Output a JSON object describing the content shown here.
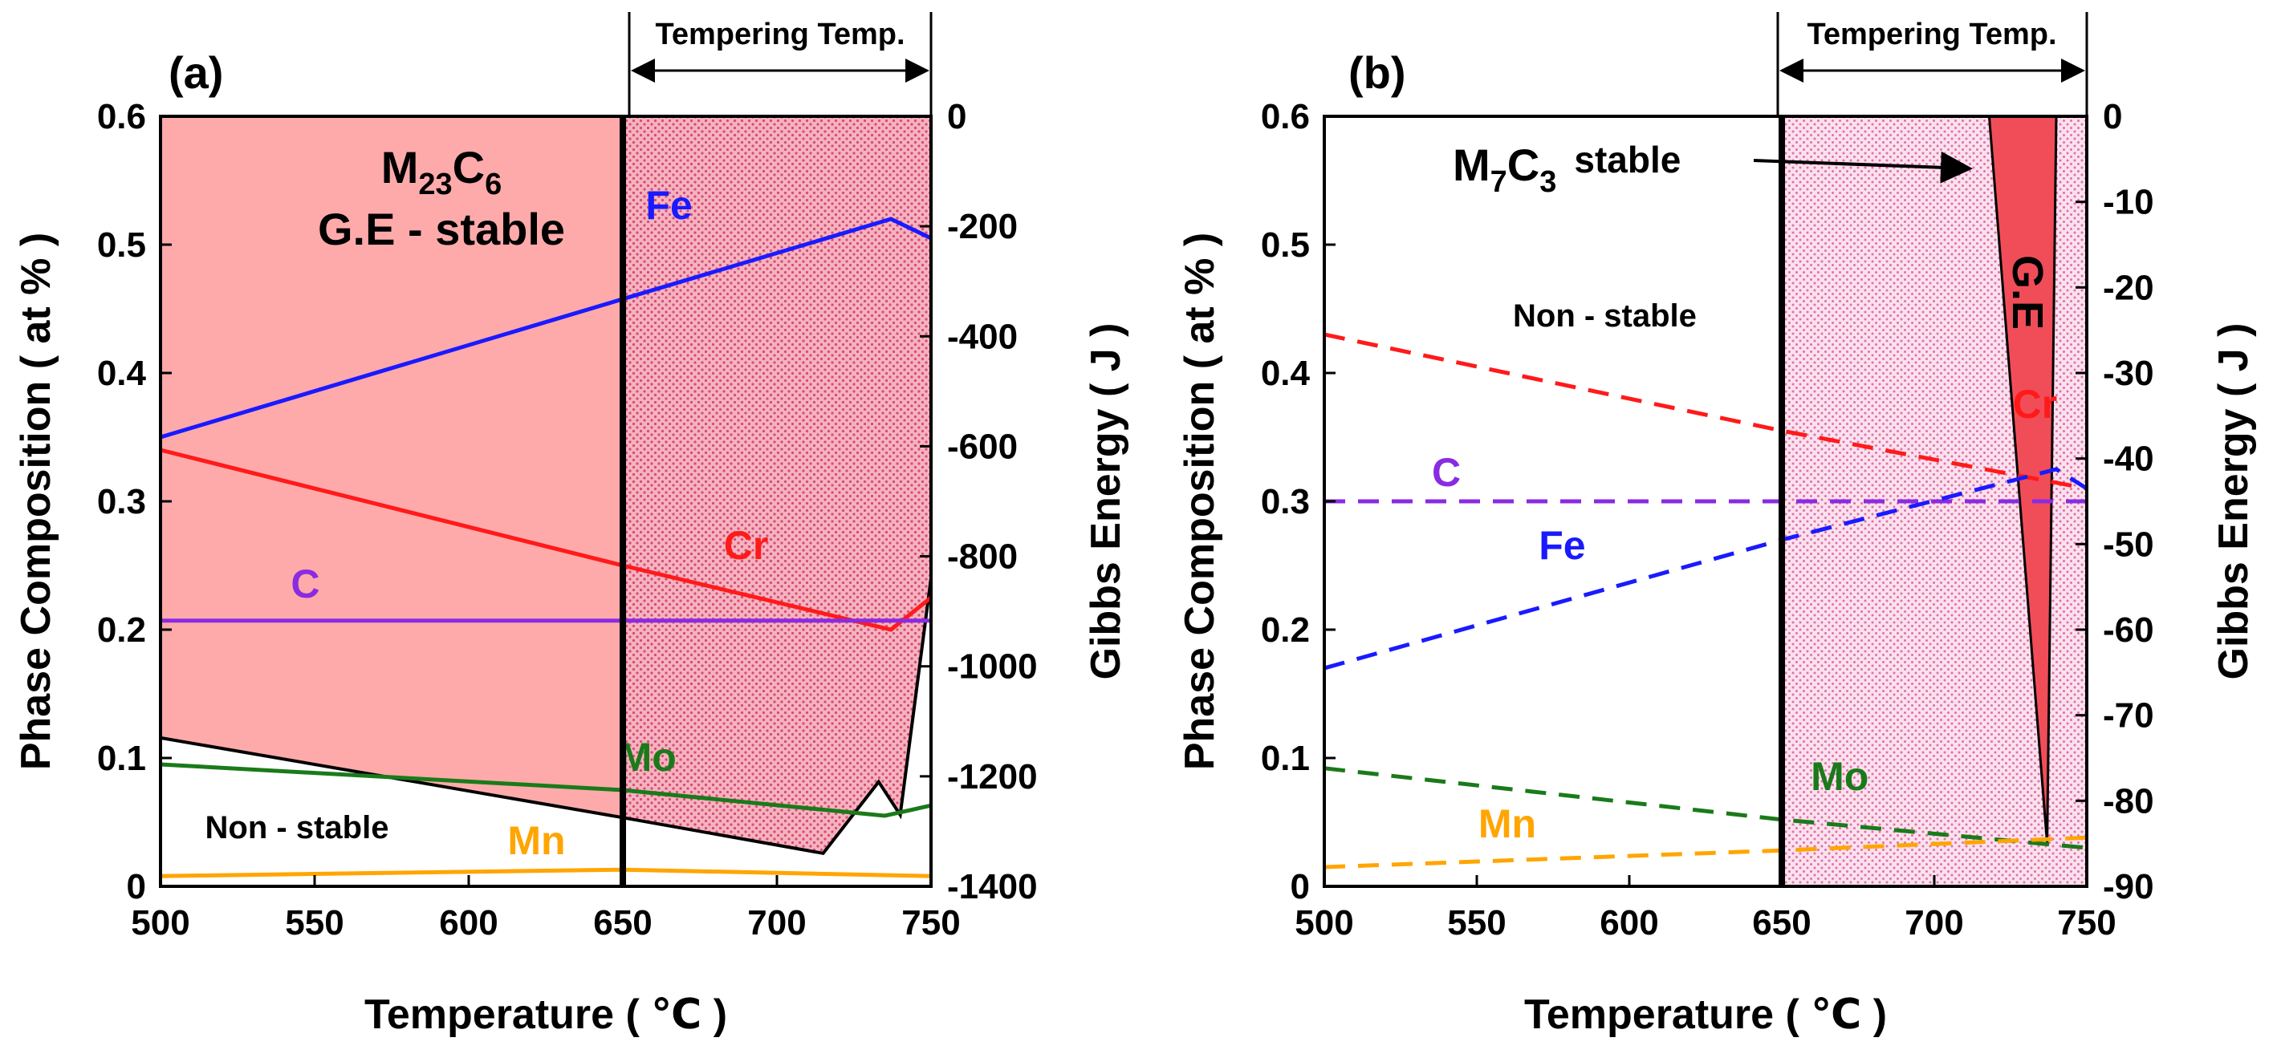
{
  "chart_data": [
    {
      "type": "line",
      "panel": "(a)",
      "xlabel": "Temperature ( ℃ )",
      "ylabel": "Phase Composition ( at % )",
      "y2label": "Gibbs Energy ( J )",
      "xlim": [
        500,
        750
      ],
      "ylim": [
        0,
        0.6
      ],
      "y2lim": [
        -1400,
        0
      ],
      "x_ticks": [
        "500",
        "550",
        "600",
        "650",
        "700",
        "750"
      ],
      "y_ticks": [
        "0",
        "0.1",
        "0.2",
        "0.3",
        "0.4",
        "0.5",
        "0.6"
      ],
      "y2_ticks": [
        "0",
        "-200",
        "-400",
        "-600",
        "-800",
        "-1000",
        "-1200",
        "-1400"
      ],
      "tempering": {
        "label": "Tempering Temp.",
        "range": [
          650,
          750
        ]
      },
      "stable_region": {
        "label_main": "M",
        "label_sub1": "23",
        "label_mid": "C",
        "label_sub2": "6",
        "label_line2": "G.E - stable"
      },
      "nonstable_label": "Non - stable",
      "gibbs_energy": {
        "x": [
          500,
          650,
          715,
          733,
          740,
          750
        ],
        "y": [
          -1130,
          -1275,
          -1340,
          -1210,
          -1270,
          -840
        ]
      },
      "series": [
        {
          "name": "Fe",
          "color": "#1a1aff",
          "dashed": false,
          "label_pos": [
            665,
            0.52
          ],
          "x": [
            500,
            737,
            750
          ],
          "y": [
            0.35,
            0.52,
            0.505
          ]
        },
        {
          "name": "Cr",
          "color": "#ff1a1a",
          "dashed": false,
          "label_pos": [
            690,
            0.255
          ],
          "x": [
            500,
            650,
            737,
            750
          ],
          "y": [
            0.34,
            0.25,
            0.2,
            0.225
          ]
        },
        {
          "name": "C",
          "color": "#8a2be2",
          "dashed": false,
          "label_pos": [
            547,
            0.225
          ],
          "x": [
            500,
            750
          ],
          "y": [
            0.207,
            0.207
          ]
        },
        {
          "name": "Mo",
          "color": "#1a7a1a",
          "dashed": false,
          "label_pos": [
            658,
            0.09
          ],
          "x": [
            500,
            650,
            735,
            750
          ],
          "y": [
            0.095,
            0.075,
            0.055,
            0.063
          ]
        },
        {
          "name": "Mn",
          "color": "#ffa500",
          "dashed": false,
          "label_pos": [
            622,
            0.025
          ],
          "x": [
            500,
            650,
            750
          ],
          "y": [
            0.008,
            0.013,
            0.008
          ]
        }
      ]
    },
    {
      "type": "line",
      "panel": "(b)",
      "xlabel": "Temperature ( ℃ )",
      "ylabel": "Phase Composition ( at % )",
      "y2label": "Gibbs Energy ( J )",
      "xlim": [
        500,
        750
      ],
      "ylim": [
        0,
        0.6
      ],
      "y2lim": [
        -90,
        0
      ],
      "x_ticks": [
        "500",
        "550",
        "600",
        "650",
        "700",
        "750"
      ],
      "y_ticks": [
        "0",
        "0.1",
        "0.2",
        "0.3",
        "0.4",
        "0.5",
        "0.6"
      ],
      "y2_ticks": [
        "0",
        "-10",
        "-20",
        "-30",
        "-40",
        "-50",
        "-60",
        "-70",
        "-80",
        "-90"
      ],
      "tempering": {
        "label": "Tempering Temp.",
        "range": [
          650,
          750
        ]
      },
      "stable_region": {
        "label_main": "M",
        "label_sub1": "7",
        "label_mid": "C",
        "label_sub2": "3",
        "label_line2": "stable"
      },
      "nonstable_label": "Non - stable",
      "ge_label": "G.E",
      "gibbs_energy": {
        "x": [
          718,
          740,
          737
        ],
        "y": [
          0,
          0,
          -85
        ]
      },
      "series": [
        {
          "name": "Cr",
          "color": "#ff1a1a",
          "dashed": true,
          "label_pos": [
            733,
            0.365
          ],
          "x": [
            500,
            650,
            750
          ],
          "y": [
            0.43,
            0.355,
            0.31
          ]
        },
        {
          "name": "C",
          "color": "#8a2be2",
          "dashed": true,
          "label_pos": [
            540,
            0.312
          ],
          "x": [
            500,
            750
          ],
          "y": [
            0.3,
            0.3
          ]
        },
        {
          "name": "Fe",
          "color": "#1a1aff",
          "dashed": true,
          "label_pos": [
            578,
            0.255
          ],
          "x": [
            500,
            650,
            740,
            750
          ],
          "y": [
            0.17,
            0.27,
            0.325,
            0.31
          ]
        },
        {
          "name": "Mo",
          "color": "#1a7a1a",
          "dashed": true,
          "label_pos": [
            669,
            0.075
          ],
          "x": [
            500,
            650,
            750
          ],
          "y": [
            0.092,
            0.052,
            0.03
          ]
        },
        {
          "name": "Mn",
          "color": "#ffa500",
          "dashed": true,
          "label_pos": [
            560,
            0.038
          ],
          "x": [
            500,
            650,
            750
          ],
          "y": [
            0.015,
            0.028,
            0.038
          ]
        }
      ]
    }
  ]
}
